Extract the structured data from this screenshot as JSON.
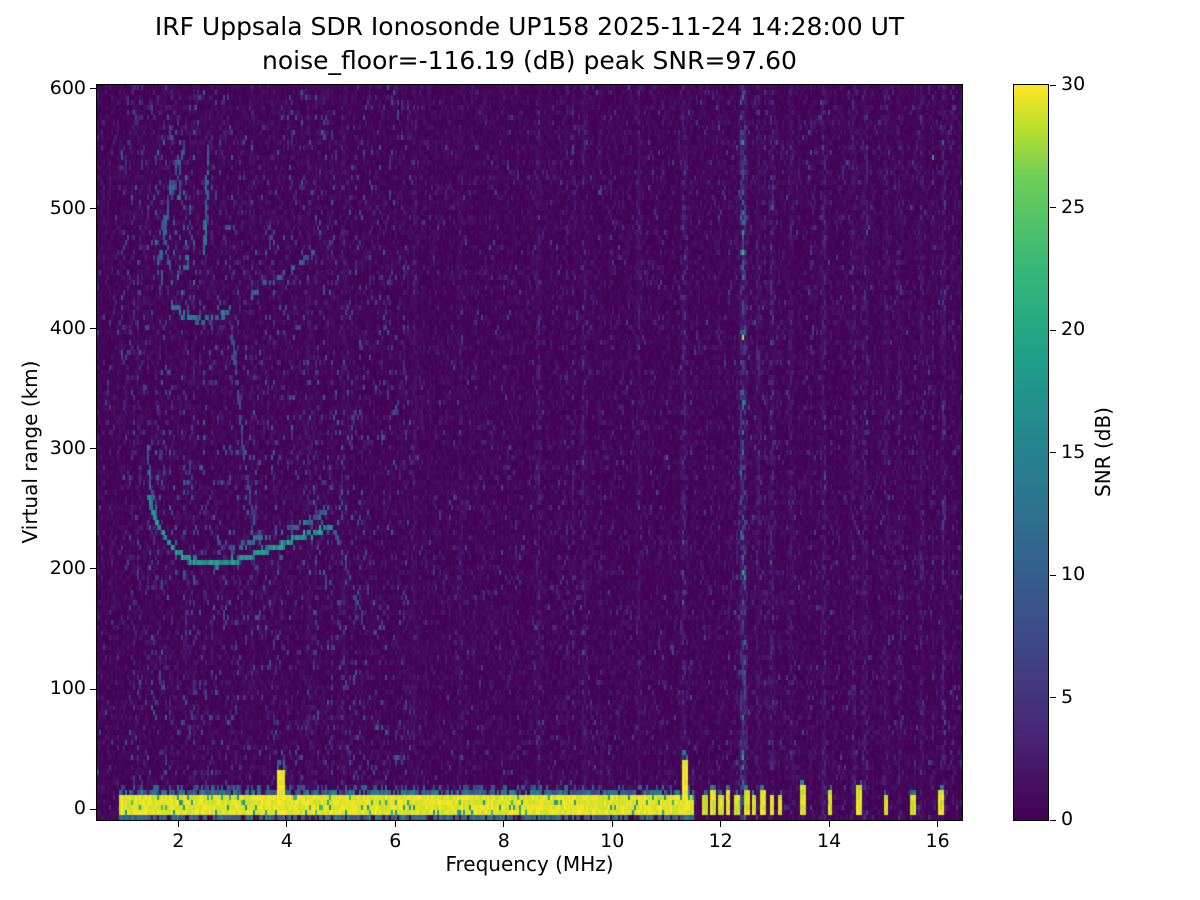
{
  "figure": {
    "title": "IRF Uppsala SDR Ionosonde UP158 2025-11-24 14:28:00  UT",
    "subtitle": "noise_floor=-116.19 (dB) peak SNR=97.60"
  },
  "chart_data": {
    "type": "heatmap",
    "title": "IRF Uppsala SDR Ionosonde UP158 2025-11-24 14:28:00  UT",
    "subtitle": "noise_floor=-116.19 (dB) peak SNR=97.60",
    "xlabel": "Frequency (MHz)",
    "ylabel": "Virtual range (km)",
    "xlim": [
      0.5,
      16.45
    ],
    "ylim": [
      -9,
      603
    ],
    "xticks": [
      2,
      4,
      6,
      8,
      10,
      12,
      14,
      16
    ],
    "yticks": [
      0,
      100,
      200,
      300,
      400,
      500,
      600
    ],
    "colorbar": {
      "label": "SNR (dB)",
      "min": 0,
      "max": 30,
      "ticks": [
        0,
        5,
        10,
        15,
        20,
        25,
        30
      ],
      "colormap": "viridis"
    },
    "noise_floor_db": -116.19,
    "peak_snr_db": 97.6,
    "ground_return": {
      "f_start": 0.92,
      "f_end": 11.5,
      "range_km": [
        -4,
        8
      ],
      "snr": 30
    },
    "ground_spikes": [
      {
        "f": 3.9,
        "top_km": 32
      },
      {
        "f": 11.35,
        "top_km": 40
      }
    ],
    "carriers": [
      {
        "f": 11.72,
        "top_km": 10
      },
      {
        "f": 11.86,
        "top_km": 14
      },
      {
        "f": 12.0,
        "top_km": 10
      },
      {
        "f": 12.14,
        "top_km": 12
      },
      {
        "f": 12.3,
        "top_km": 9
      },
      {
        "f": 12.48,
        "top_km": 14
      },
      {
        "f": 12.62,
        "top_km": 10
      },
      {
        "f": 12.78,
        "top_km": 12
      },
      {
        "f": 12.95,
        "top_km": 10
      },
      {
        "f": 13.1,
        "top_km": 8
      },
      {
        "f": 13.52,
        "top_km": 16
      },
      {
        "f": 14.02,
        "top_km": 15
      },
      {
        "f": 14.55,
        "top_km": 17
      },
      {
        "f": 15.05,
        "top_km": 11
      },
      {
        "f": 15.55,
        "top_km": 10
      },
      {
        "f": 16.05,
        "top_km": 14
      }
    ],
    "noise_lines": [
      {
        "f": 12.42,
        "a": 5.0,
        "w": 0.035
      },
      {
        "f": 11.33,
        "a": 1.8,
        "w": 0.03
      },
      {
        "f": 12.95,
        "a": 1.6,
        "w": 0.03
      },
      {
        "f": 8.65,
        "a": 1.1,
        "w": 0.03
      },
      {
        "f": 9.5,
        "a": 0.8,
        "w": 0.03
      },
      {
        "f": 10.5,
        "a": 0.9,
        "w": 0.03
      },
      {
        "f": 12.7,
        "a": 1.1,
        "w": 0.03
      },
      {
        "f": 13.3,
        "a": 0.9,
        "w": 0.03
      },
      {
        "f": 13.9,
        "a": 1.2,
        "w": 0.03
      },
      {
        "f": 14.45,
        "a": 1.3,
        "w": 0.03
      },
      {
        "f": 14.65,
        "a": 1.0,
        "w": 0.03
      },
      {
        "f": 15.05,
        "a": 0.9,
        "w": 0.03
      },
      {
        "f": 15.3,
        "a": 0.8,
        "w": 0.03
      },
      {
        "f": 15.7,
        "a": 0.9,
        "w": 0.03
      },
      {
        "f": 16.1,
        "a": 0.8,
        "w": 0.03
      },
      {
        "f": 6.35,
        "a": 0.7,
        "w": 0.03
      },
      {
        "f": 7.2,
        "a": 0.6,
        "w": 0.03
      },
      {
        "f": 4.4,
        "a": 0.7,
        "w": 0.03
      },
      {
        "f": 5.05,
        "a": 0.6,
        "w": 0.03
      },
      {
        "f": 3.35,
        "a": 0.6,
        "w": 0.03
      }
    ],
    "speckle_regions": [
      {
        "f": [
          0.95,
          6.3
        ],
        "r": [
          25,
          600
        ],
        "p": 0.05,
        "v": [
          3,
          10
        ]
      },
      {
        "f": [
          0.5,
          16.45
        ],
        "r": [
          -9,
          603
        ],
        "p": 0.02,
        "v": [
          2.5,
          7.5
        ]
      },
      {
        "f": [
          1.4,
          5.2
        ],
        "r": [
          140,
          330
        ],
        "p": 0.015,
        "v": [
          5,
          12
        ]
      },
      {
        "f": [
          1.55,
          2.3
        ],
        "r": [
          430,
          565
        ],
        "p": 0.1,
        "v": [
          5,
          14
        ]
      }
    ],
    "traces": [
      {
        "name": "F-layer first hop",
        "snr": 19,
        "thick_km": 6,
        "jitter_km": 2.5,
        "density": 0.95,
        "points": [
          [
            1.45,
            260
          ],
          [
            1.62,
            237
          ],
          [
            1.82,
            221
          ],
          [
            2.05,
            211
          ],
          [
            2.35,
            206
          ],
          [
            2.7,
            204
          ],
          [
            3.0,
            206
          ],
          [
            3.3,
            210
          ],
          [
            3.62,
            215
          ],
          [
            3.95,
            221
          ],
          [
            4.3,
            227
          ],
          [
            4.6,
            232
          ],
          [
            4.82,
            236
          ]
        ]
      },
      {
        "name": "F-layer upper branch",
        "snr": 13,
        "thick_km": 4,
        "jitter_km": 2,
        "density": 0.55,
        "points": [
          [
            2.95,
            217
          ],
          [
            3.3,
            222
          ],
          [
            3.7,
            228
          ],
          [
            4.1,
            234
          ],
          [
            4.45,
            240
          ],
          [
            4.72,
            247
          ],
          [
            4.8,
            258
          ]
        ]
      },
      {
        "name": "low-frequency cusp",
        "snr": 12,
        "thick_km": 4,
        "jitter_km": 4,
        "density": 0.5,
        "points": [
          [
            1.42,
            300
          ],
          [
            1.47,
            275
          ],
          [
            1.53,
            258
          ],
          [
            1.6,
            245
          ]
        ]
      },
      {
        "name": "descending tail",
        "snr": 9,
        "thick_km": 4,
        "jitter_km": 4,
        "density": 0.35,
        "points": [
          [
            4.85,
            232
          ],
          [
            5.0,
            215
          ],
          [
            5.15,
            195
          ],
          [
            5.3,
            172
          ],
          [
            5.42,
            155
          ]
        ]
      },
      {
        "name": "second hop",
        "snr": 14,
        "thick_km": 5,
        "jitter_km": 2.5,
        "density": 0.8,
        "points": [
          [
            1.88,
            420
          ],
          [
            2.1,
            412
          ],
          [
            2.4,
            407
          ],
          [
            2.7,
            409
          ],
          [
            2.95,
            415
          ]
        ]
      },
      {
        "name": "second hop oblique",
        "snr": 11,
        "thick_km": 4,
        "jitter_km": 3,
        "density": 0.5,
        "points": [
          [
            3.3,
            427
          ],
          [
            3.7,
            439
          ],
          [
            4.1,
            451
          ],
          [
            4.5,
            463
          ]
        ]
      },
      {
        "name": "connector",
        "snr": 9,
        "thick_km": 4,
        "jitter_km": 4,
        "density": 0.4,
        "points": [
          [
            2.98,
            398
          ],
          [
            3.08,
            352
          ],
          [
            3.2,
            300
          ],
          [
            3.32,
            258
          ],
          [
            3.4,
            240
          ]
        ]
      },
      {
        "name": "spread-F vertical streak",
        "snr": 13,
        "thick_km": 5,
        "jitter_km": 5,
        "density": 0.55,
        "points": [
          [
            2.47,
            460
          ],
          [
            2.52,
            510
          ],
          [
            2.55,
            552
          ]
        ]
      },
      {
        "name": "spread-F scatter",
        "snr": 11,
        "thick_km": 8,
        "jitter_km": 18,
        "density": 0.3,
        "points": [
          [
            1.65,
            468
          ],
          [
            1.78,
            498
          ],
          [
            1.92,
            523
          ],
          [
            2.08,
            545
          ]
        ]
      }
    ]
  }
}
